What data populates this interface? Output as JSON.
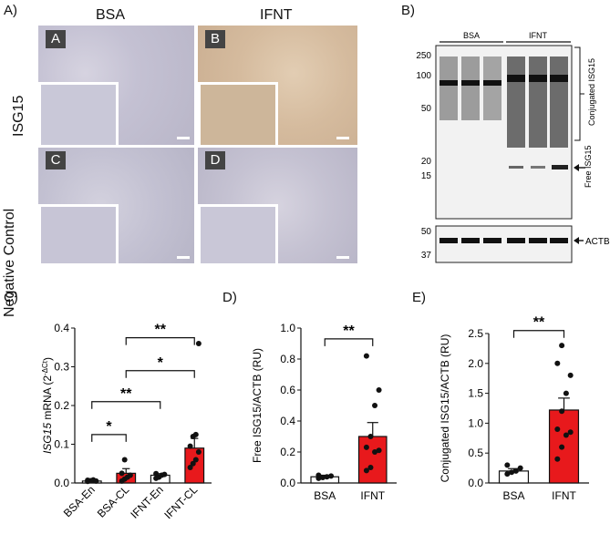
{
  "panelA": {
    "label": "A)",
    "col_titles": [
      "BSA",
      "IFNT"
    ],
    "row_titles": [
      "ISG15",
      "Negative Control"
    ],
    "tiles": [
      "A",
      "B",
      "C",
      "D"
    ]
  },
  "panelB": {
    "label": "B)",
    "groups": [
      "BSA",
      "IFNT"
    ],
    "mw_markers": [
      "250",
      "100",
      "50",
      "20",
      "15"
    ],
    "actb_markers": [
      "50",
      "37"
    ],
    "conjugated_label": "Conjugated ISG15",
    "free_label": "Free ISG15",
    "actb_label": "ACTB"
  },
  "chart_data": [
    {
      "panel": "C)",
      "type": "bar",
      "categories": [
        "BSA-En",
        "BSA-CL",
        "IFNT-En",
        "IFNT-CL"
      ],
      "values": [
        0.005,
        0.025,
        0.02,
        0.09
      ],
      "errors": [
        0.003,
        0.012,
        0.004,
        0.025
      ],
      "points": [
        [
          0.004,
          0.006,
          0.008,
          0.005,
          0.007
        ],
        [
          0.005,
          0.01,
          0.015,
          0.02,
          0.025,
          0.06
        ],
        [
          0.012,
          0.015,
          0.02,
          0.022,
          0.024
        ],
        [
          0.04,
          0.05,
          0.06,
          0.08,
          0.095,
          0.12,
          0.125,
          0.36
        ]
      ],
      "ylabel_italic": "ISG15",
      "ylabel_rest": " mRNA (2",
      "ylabel_sup": "-ΔCt",
      "ylabel_end": ")",
      "ylim": [
        0,
        0.4
      ],
      "yticks": [
        "0.0",
        "0.1",
        "0.2",
        "0.3",
        "0.4"
      ],
      "significance": [
        {
          "from": 0,
          "to": 1,
          "label": "*"
        },
        {
          "from": 0,
          "to": 2,
          "label": "**"
        },
        {
          "from": 1,
          "to": 3,
          "label": "*"
        },
        {
          "from": 1,
          "to": 3,
          "label": "**"
        }
      ]
    },
    {
      "panel": "D)",
      "type": "bar",
      "categories": [
        "BSA",
        "IFNT"
      ],
      "values": [
        0.04,
        0.3
      ],
      "errors": [
        0.01,
        0.09
      ],
      "points": [
        [
          0.03,
          0.035,
          0.04,
          0.045,
          0.05
        ],
        [
          0.08,
          0.1,
          0.2,
          0.21,
          0.23,
          0.3,
          0.5,
          0.6,
          0.82
        ]
      ],
      "ylabel": "Free ISG15/ACTB (RU)",
      "ylim": [
        0,
        1.0
      ],
      "yticks": [
        "0.0",
        "0.2",
        "0.4",
        "0.6",
        "0.8",
        "1.0"
      ],
      "significance": [
        {
          "from": 0,
          "to": 1,
          "label": "**"
        }
      ]
    },
    {
      "panel": "E)",
      "type": "bar",
      "categories": [
        "BSA",
        "IFNT"
      ],
      "values": [
        0.2,
        1.22
      ],
      "errors": [
        0.04,
        0.2
      ],
      "points": [
        [
          0.15,
          0.18,
          0.2,
          0.25,
          0.3
        ],
        [
          0.4,
          0.6,
          0.8,
          0.85,
          0.9,
          1.2,
          1.5,
          1.8,
          2.0,
          2.3
        ]
      ],
      "ylabel": "Conjugated ISG15/ACTB (RU)",
      "ylim": [
        0,
        2.5
      ],
      "yticks": [
        "0.0",
        "0.5",
        "1.0",
        "1.5",
        "2.0",
        "2.5"
      ],
      "significance": [
        {
          "from": 0,
          "to": 1,
          "label": "**"
        }
      ]
    }
  ],
  "colors": {
    "red_bar": "#e8191c",
    "white_bar": "#ffffff",
    "bsa_tissue": "#c8c6d6",
    "ifnt_tissue": "#d9c2a6"
  }
}
